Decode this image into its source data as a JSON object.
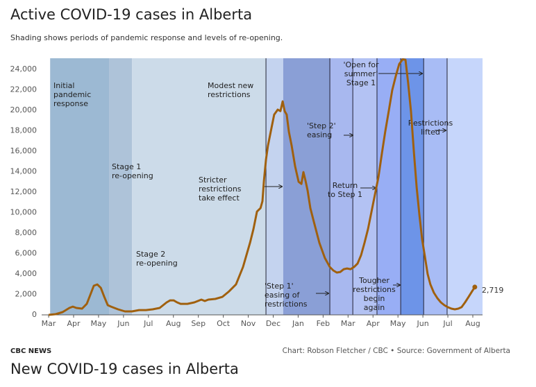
{
  "chart_data": {
    "type": "line",
    "title": "Active COVID-19 cases in Alberta",
    "subtitle": "Shading shows periods of pandemic response and levels of re-opening.",
    "xlim": [
      -0.28,
      17.39
    ],
    "ylim": [
      0,
      25100
    ],
    "xticks": [
      {
        "value": 0,
        "label": "Mar"
      },
      {
        "value": 1,
        "label": "Apr"
      },
      {
        "value": 2,
        "label": "May"
      },
      {
        "value": 3,
        "label": "Jun"
      },
      {
        "value": 4,
        "label": "Jul"
      },
      {
        "value": 5,
        "label": "Aug"
      },
      {
        "value": 6,
        "label": "Sep"
      },
      {
        "value": 7,
        "label": "Oct"
      },
      {
        "value": 8,
        "label": "Nov"
      },
      {
        "value": 9,
        "label": "Dec"
      },
      {
        "value": 10,
        "label": "Jan"
      },
      {
        "value": 11,
        "label": "Feb"
      },
      {
        "value": 12,
        "label": "Mar"
      },
      {
        "value": 13,
        "label": "Apr"
      },
      {
        "value": 14,
        "label": "May"
      },
      {
        "value": 15,
        "label": "Jun"
      },
      {
        "value": 16,
        "label": "Jul"
      },
      {
        "value": 17,
        "label": "Aug"
      }
    ],
    "yticks": [
      0,
      {
        "value": 2000,
        "label": "2,000"
      },
      {
        "value": 4000,
        "label": "4,000"
      },
      {
        "value": 6000,
        "label": "6,000"
      },
      {
        "value": 8000,
        "label": "8,000"
      },
      {
        "value": 10000,
        "label": "10,000"
      },
      {
        "value": 12000,
        "label": "12,000"
      },
      {
        "value": 14000,
        "label": "14,000"
      },
      {
        "value": 16000,
        "label": "16,000"
      },
      {
        "value": 18000,
        "label": "18,000"
      },
      {
        "value": 20000,
        "label": "20,000"
      },
      {
        "value": 22000,
        "label": "22,000"
      },
      {
        "value": 24000,
        "label": "24,000"
      }
    ],
    "grid": false,
    "regions": [
      {
        "start": 0.06,
        "end": 2.42,
        "color": "#9cb9d3",
        "divider": false
      },
      {
        "start": 2.42,
        "end": 3.34,
        "color": "#aec3d9",
        "divider": false
      },
      {
        "start": 3.34,
        "end": 8.71,
        "color": "#ccdbe9",
        "divider": false
      },
      {
        "start": 8.71,
        "end": 9.4,
        "color": "#c4d3ef",
        "divider": true
      },
      {
        "start": 9.4,
        "end": 11.27,
        "color": "#8a9fd6",
        "divider": false
      },
      {
        "start": 11.27,
        "end": 12.19,
        "color": "#a8b8ef",
        "divider": true
      },
      {
        "start": 12.19,
        "end": 13.16,
        "color": "#b3c2f3",
        "divider": true
      },
      {
        "start": 13.16,
        "end": 14.11,
        "color": "#98aef5",
        "divider": true
      },
      {
        "start": 14.11,
        "end": 15.03,
        "color": "#6d94e8",
        "divider": true
      },
      {
        "start": 15.03,
        "end": 15.97,
        "color": "#a8bcf5",
        "divider": true
      },
      {
        "start": 15.97,
        "end": 17.39,
        "color": "#c6d6fb",
        "divider": true
      }
    ],
    "annotations": [
      {
        "lines": [
          "Initial",
          "pandemic",
          "response"
        ]
      },
      {
        "lines": [
          "Stage 1",
          "re-opening"
        ]
      },
      {
        "lines": [
          "Stage 2",
          "re-opening"
        ]
      },
      {
        "lines": [
          "Modest new",
          "restrictions"
        ]
      },
      {
        "lines": [
          "Stricter",
          "restrictions",
          "take effect"
        ]
      },
      {
        "lines": [
          "'Step 1'",
          "easing of",
          "restrictions"
        ]
      },
      {
        "lines": [
          "'Step 2'",
          "easing"
        ]
      },
      {
        "lines": [
          "Return",
          "to Step 1"
        ]
      },
      {
        "lines": [
          "Tougher",
          "restrictions",
          "begin",
          "again"
        ]
      },
      {
        "lines": [
          "'Open for",
          "summer'",
          "Stage 1"
        ]
      },
      {
        "lines": [
          "Restrictions",
          "lifted"
        ]
      }
    ],
    "x": [
      0,
      0.28,
      0.56,
      0.83,
      0.97,
      1.11,
      1.34,
      1.53,
      1.67,
      1.81,
      1.95,
      2.09,
      2.23,
      2.37,
      2.5,
      2.78,
      3.06,
      3.34,
      3.62,
      3.9,
      4.17,
      4.45,
      4.73,
      4.87,
      5.01,
      5.15,
      5.29,
      5.56,
      5.84,
      6.12,
      6.26,
      6.4,
      6.68,
      6.96,
      7.23,
      7.51,
      7.79,
      8.07,
      8.21,
      8.35,
      8.49,
      8.57,
      8.63,
      8.71,
      8.79,
      8.9,
      9.04,
      9.18,
      9.29,
      9.38,
      9.46,
      9.54,
      9.63,
      9.74,
      9.88,
      10.02,
      10.13,
      10.21,
      10.29,
      10.38,
      10.49,
      10.63,
      10.85,
      11.07,
      11.27,
      11.41,
      11.55,
      11.69,
      11.83,
      11.96,
      12.1,
      12.24,
      12.38,
      12.52,
      12.66,
      12.8,
      12.94,
      13.08,
      13.22,
      13.36,
      13.49,
      13.63,
      13.77,
      13.91,
      14.05,
      14.19,
      14.3,
      14.41,
      14.52,
      14.64,
      14.75,
      14.86,
      14.97,
      15.08,
      15.19,
      15.3,
      15.44,
      15.58,
      15.72,
      15.86,
      16.0,
      16.14,
      16.28,
      16.42,
      16.55,
      16.69,
      16.83,
      16.97,
      17.08
    ],
    "series": [
      {
        "color": "#a0600e",
        "last_value_label": "2,719",
        "values": [
          0,
          70,
          270,
          680,
          810,
          680,
          610,
          1080,
          1970,
          2850,
          2980,
          2640,
          1760,
          950,
          810,
          540,
          340,
          340,
          470,
          470,
          540,
          680,
          1220,
          1420,
          1420,
          1220,
          1080,
          1080,
          1220,
          1490,
          1360,
          1490,
          1560,
          1760,
          2300,
          2980,
          4680,
          7050,
          8410,
          10100,
          10440,
          11120,
          13160,
          15190,
          16540,
          17900,
          19590,
          20070,
          19930,
          20880,
          19930,
          19590,
          17900,
          16540,
          14510,
          13020,
          12810,
          13970,
          13160,
          12140,
          10440,
          9090,
          7050,
          5560,
          4680,
          4340,
          4140,
          4200,
          4470,
          4540,
          4470,
          4680,
          5020,
          5830,
          7050,
          8410,
          10100,
          11800,
          13490,
          15870,
          17900,
          19930,
          21970,
          23320,
          24540,
          25000,
          24950,
          22650,
          19930,
          15870,
          12480,
          9760,
          7390,
          5700,
          4000,
          2980,
          2170,
          1630,
          1220,
          950,
          750,
          610,
          540,
          610,
          750,
          1220,
          1760,
          2300,
          2719
        ]
      }
    ]
  },
  "footer": {
    "brand": "CBC NEWS",
    "source": "Chart: Robson Fletcher / CBC • Source: Government of Alberta",
    "next_title": "New COVID-19 cases in Alberta"
  }
}
